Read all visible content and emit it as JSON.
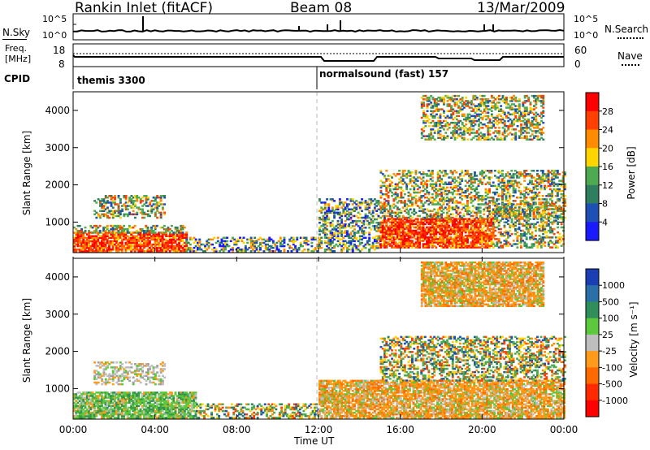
{
  "header": {
    "station": "Rankin Inlet (fitACF)",
    "beam": "Beam 08",
    "date": "13/Mar/2009"
  },
  "noise_panel": {
    "left_label": "N.Sky",
    "right_label": "N.Search",
    "left_ticks": [
      "10^5",
      "10^0"
    ],
    "right_ticks": [
      "10^5",
      "10^0"
    ]
  },
  "freq_panel": {
    "left_label_line1": "Freq.",
    "left_label_line2": "[MHz]",
    "right_label": "Nave",
    "left_ticks": [
      "18",
      "8"
    ],
    "right_ticks": [
      "60",
      "0"
    ]
  },
  "cpid_panel": {
    "label": "CPID",
    "segments": [
      {
        "name": "themis 3300",
        "start_hour": 0,
        "end_hour": 12
      },
      {
        "name": "normalsound (fast) 157",
        "start_hour": 12,
        "end_hour": 24
      }
    ]
  },
  "time_axis": {
    "label": "Time UT",
    "ticks": [
      "00:00",
      "04:00",
      "08:00",
      "12:00",
      "16:00",
      "20:00",
      "00:00"
    ]
  },
  "chart_data": [
    {
      "type": "heatmap",
      "name": "power",
      "ylabel": "Slant Range [km]",
      "x_range_hours": [
        0,
        24
      ],
      "ylim": [
        180,
        4500
      ],
      "y_ticks": [
        1000,
        2000,
        3000,
        4000
      ],
      "colorbar": {
        "label": "Power [dB]",
        "ticks": [
          "28",
          "24",
          "20",
          "16",
          "12",
          "8",
          "4"
        ],
        "colors": [
          "#ff0000",
          "#ff4000",
          "#ff8c00",
          "#ffd500",
          "#4daa50",
          "#2f7e60",
          "#1e4fb5",
          "#1a1aff"
        ]
      },
      "echo_regions": [
        {
          "t0": 0.0,
          "t1": 5.5,
          "r0": 200,
          "r1": 700,
          "level": "high"
        },
        {
          "t0": 0.0,
          "t1": 5.5,
          "r0": 700,
          "r1": 900,
          "level": "mixed"
        },
        {
          "t0": 1.0,
          "t1": 4.5,
          "r0": 1100,
          "r1": 1700,
          "level": "mixed"
        },
        {
          "t0": 5.5,
          "t1": 12.0,
          "r0": 200,
          "r1": 600,
          "level": "low"
        },
        {
          "t0": 12.0,
          "t1": 15.0,
          "r0": 200,
          "r1": 1600,
          "level": "low"
        },
        {
          "t0": 15.0,
          "t1": 20.5,
          "r0": 300,
          "r1": 1100,
          "level": "high"
        },
        {
          "t0": 15.0,
          "t1": 24.0,
          "r0": 1100,
          "r1": 2400,
          "level": "mixed"
        },
        {
          "t0": 20.5,
          "t1": 24.0,
          "r0": 300,
          "r1": 1500,
          "level": "mixed"
        },
        {
          "t0": 17.0,
          "t1": 23.0,
          "r0": 3200,
          "r1": 4400,
          "level": "mixed"
        }
      ]
    },
    {
      "type": "heatmap",
      "name": "velocity",
      "ylabel": "Slant Range [km]",
      "x_range_hours": [
        0,
        24
      ],
      "ylim": [
        180,
        4500
      ],
      "y_ticks": [
        1000,
        2000,
        3000,
        4000
      ],
      "colorbar": {
        "label": "Velocity [m s⁻¹]",
        "ticks": [
          "1000",
          "500",
          "100",
          "25",
          "-25",
          "-100",
          "-500",
          "-1000"
        ],
        "colors": [
          "#1a3fb5",
          "#2a6fa8",
          "#2f8e5a",
          "#5cc83c",
          "#bebebe",
          "#ff9a1a",
          "#ff6a00",
          "#ff2a00",
          "#ff0000"
        ]
      },
      "echo_regions": [
        {
          "t0": 0.0,
          "t1": 6.0,
          "r0": 200,
          "r1": 900,
          "level": "green"
        },
        {
          "t0": 1.0,
          "t1": 4.5,
          "r0": 1100,
          "r1": 1700,
          "level": "grey"
        },
        {
          "t0": 6.0,
          "t1": 12.0,
          "r0": 200,
          "r1": 600,
          "level": "mixed"
        },
        {
          "t0": 12.0,
          "t1": 24.0,
          "r0": 200,
          "r1": 1200,
          "level": "orange"
        },
        {
          "t0": 15.0,
          "t1": 24.0,
          "r0": 1200,
          "r1": 2400,
          "level": "mixed"
        },
        {
          "t0": 17.0,
          "t1": 23.0,
          "r0": 3200,
          "r1": 4400,
          "level": "orange"
        }
      ]
    }
  ]
}
